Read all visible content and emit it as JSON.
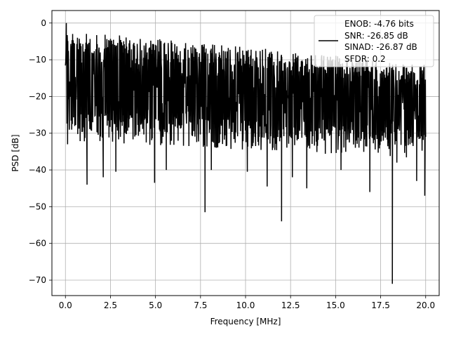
{
  "chart_data": {
    "type": "line",
    "title": "",
    "xlabel": "Frequency [MHz]",
    "ylabel": "PSD [dB]",
    "xlim": [
      -0.75,
      20.75
    ],
    "ylim": [
      -74.2,
      3.4
    ],
    "x_ticks": [
      0.0,
      2.5,
      5.0,
      7.5,
      10.0,
      12.5,
      15.0,
      17.5,
      20.0
    ],
    "x_tick_labels": [
      "0.0",
      "2.5",
      "5.0",
      "7.5",
      "10.0",
      "12.5",
      "15.0",
      "17.5",
      "20.0"
    ],
    "y_ticks": [
      0,
      -10,
      -20,
      -30,
      -40,
      -50,
      -60,
      -70
    ],
    "y_tick_labels": [
      "0",
      "−10",
      "−20",
      "−30",
      "−40",
      "−50",
      "−60",
      "−70"
    ],
    "grid": true,
    "legend_position": "top-right",
    "line_color": "#000000",
    "series": [
      {
        "name": "",
        "legend_lines": [
          "ENOB: -4.76 bits",
          "SNR: -26.85 dB",
          "SINAD: -26.87 dB",
          "SFDR: 0.2"
        ],
        "x_range": [
          0.0,
          20.0
        ],
        "num_points": 1200,
        "envelope_top_start": -2,
        "envelope_top_end": -11,
        "envelope_bottom_start": -28,
        "envelope_bottom_end": -33,
        "peak": {
          "x": 0.05,
          "y": 0.0
        },
        "dips": [
          {
            "x": 0.12,
            "y": -33
          },
          {
            "x": 1.2,
            "y": -44
          },
          {
            "x": 2.1,
            "y": -42
          },
          {
            "x": 2.8,
            "y": -40.5
          },
          {
            "x": 4.95,
            "y": -43.5
          },
          {
            "x": 5.6,
            "y": -40
          },
          {
            "x": 7.75,
            "y": -51.5
          },
          {
            "x": 8.1,
            "y": -40
          },
          {
            "x": 10.1,
            "y": -40.5
          },
          {
            "x": 11.2,
            "y": -44.5
          },
          {
            "x": 12.0,
            "y": -54
          },
          {
            "x": 12.6,
            "y": -42
          },
          {
            "x": 13.4,
            "y": -45
          },
          {
            "x": 15.3,
            "y": -40
          },
          {
            "x": 16.9,
            "y": -46
          },
          {
            "x": 18.15,
            "y": -71
          },
          {
            "x": 18.4,
            "y": -38
          },
          {
            "x": 19.5,
            "y": -43
          },
          {
            "x": 19.95,
            "y": -47
          }
        ]
      }
    ]
  }
}
